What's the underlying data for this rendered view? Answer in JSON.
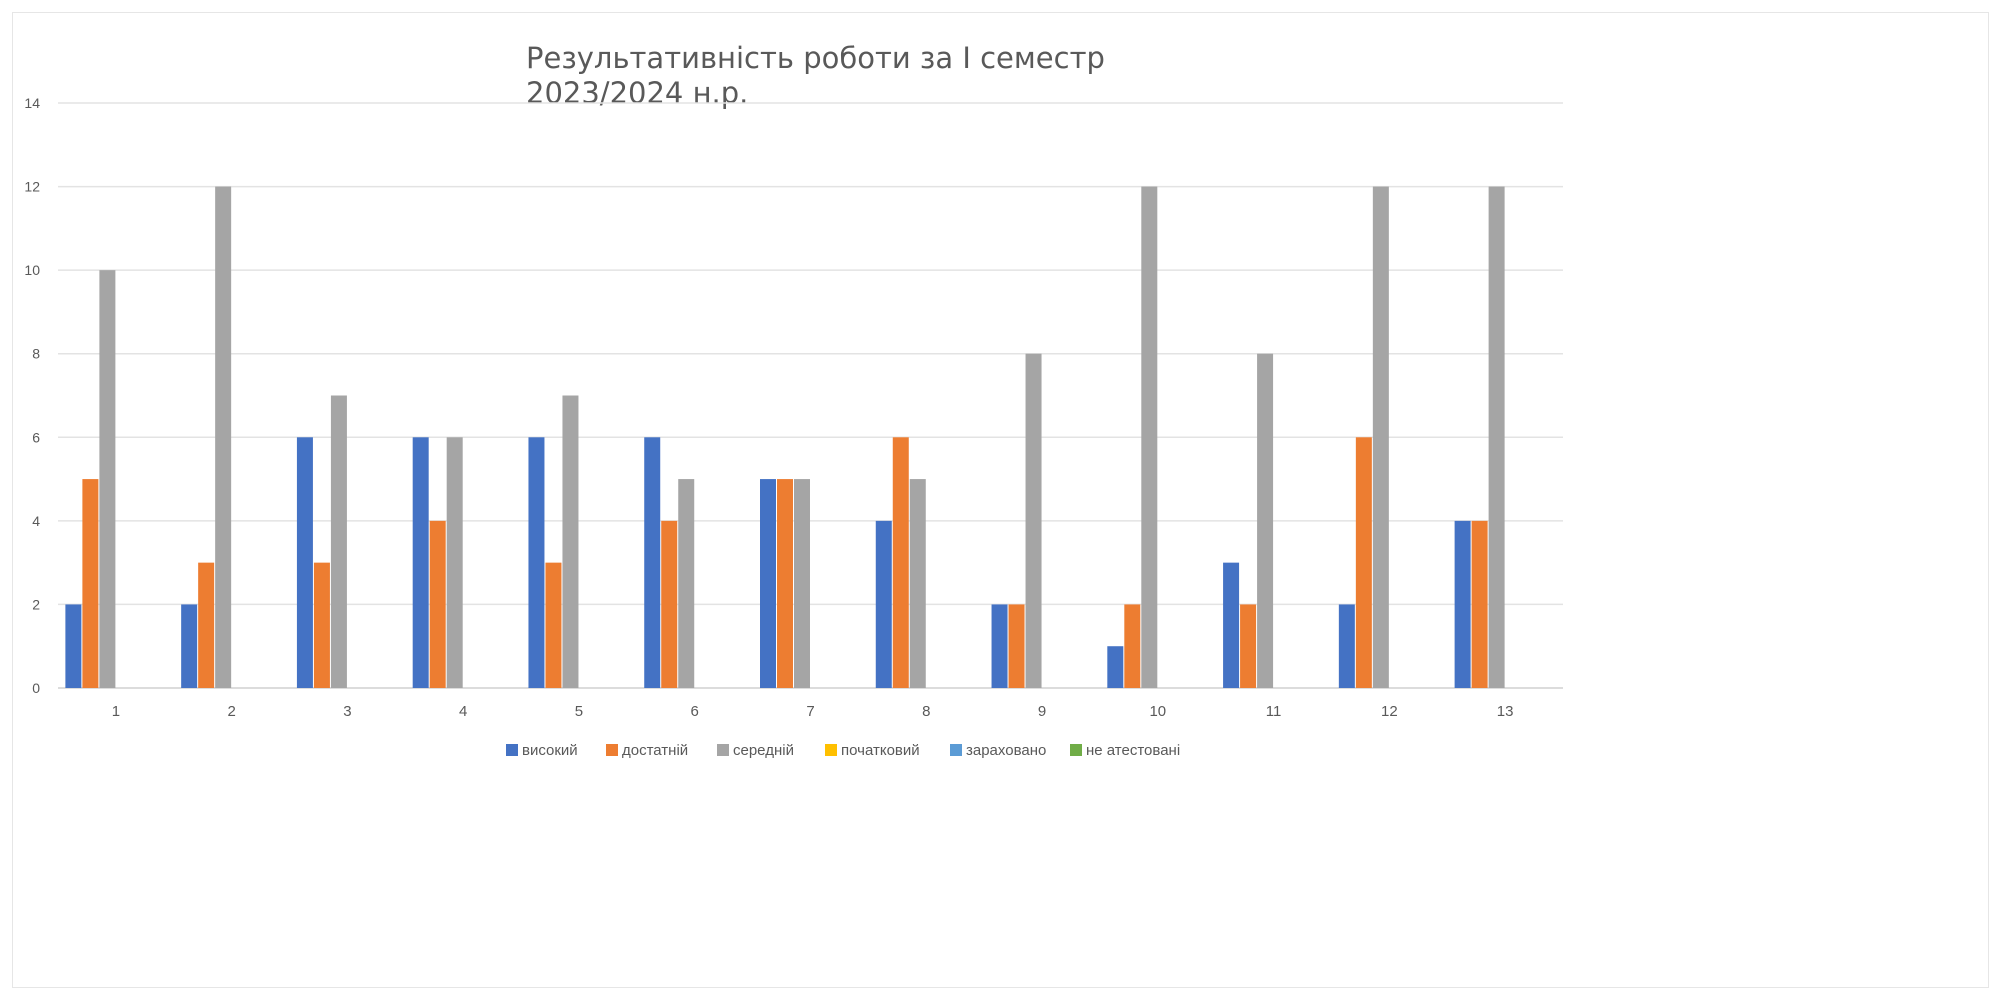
{
  "chart_data": {
    "type": "bar",
    "title": [
      "Результативність роботи за І семестр",
      "2023/2024 н.р."
    ],
    "categories": [
      "1",
      "2",
      "3",
      "4",
      "5",
      "6",
      "7",
      "8",
      "9",
      "10",
      "11",
      "12",
      "13"
    ],
    "ylim": [
      0,
      14
    ],
    "yticks": [
      "0",
      "2",
      "4",
      "6",
      "8",
      "10",
      "12",
      "14"
    ],
    "grid": true,
    "legend_position": "bottom",
    "series": [
      {
        "name": "високий",
        "color": "#4472c4",
        "values": [
          2,
          2,
          6,
          6,
          6,
          6,
          5,
          4,
          2,
          1,
          3,
          2,
          4
        ]
      },
      {
        "name": "достатній",
        "color": "#ed7d31",
        "values": [
          5,
          3,
          3,
          4,
          3,
          4,
          5,
          6,
          2,
          2,
          2,
          6,
          4
        ]
      },
      {
        "name": "середній",
        "color": "#a5a5a5",
        "values": [
          10,
          12,
          7,
          6,
          7,
          5,
          5,
          5,
          8,
          12,
          8,
          12,
          12
        ]
      },
      {
        "name": "початковий",
        "color": "#ffc000",
        "values": [
          0,
          0,
          0,
          0,
          0,
          0,
          0,
          0,
          0,
          0,
          0,
          0,
          0
        ]
      },
      {
        "name": "зараховано",
        "color": "#5b9bd5",
        "values": [
          0,
          0,
          0,
          0,
          0,
          0,
          0,
          0,
          0,
          0,
          0,
          0,
          0
        ]
      },
      {
        "name": "не атестовані",
        "color": "#70ad47",
        "values": [
          0,
          0,
          0,
          0,
          0,
          0,
          0,
          0,
          0,
          0,
          0,
          0,
          0
        ]
      }
    ]
  }
}
